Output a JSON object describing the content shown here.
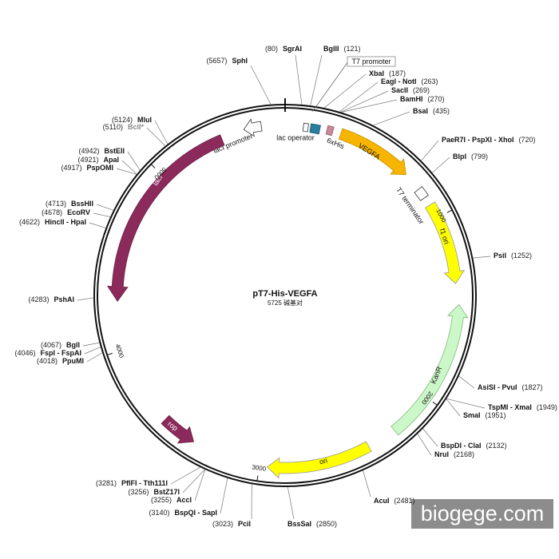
{
  "title": "pT7-His-VEGFA",
  "length": "5725 碱基对",
  "sites": [
    {
      "name": "SgrAI",
      "position": "(80)"
    },
    {
      "name": "BglII",
      "position": "(121)"
    },
    {
      "name": "XbaI",
      "position": "(187)"
    },
    {
      "name": "EagI - NotI",
      "position": "(263)"
    },
    {
      "name": "SacII",
      "position": "(269)"
    },
    {
      "name": "BamHI",
      "position": "(270)"
    },
    {
      "name": "BsaI",
      "position": "(435)"
    },
    {
      "name": "PaeR7I - PspXI - XhoI",
      "position": "(720)"
    },
    {
      "name": "BlpI",
      "position": "(799)"
    },
    {
      "name": "PsiI",
      "position": "(1252)"
    },
    {
      "name": "AsiSI - PvuI",
      "position": "(1827)"
    },
    {
      "name": "TspMI - XmaI",
      "position": "(1949)"
    },
    {
      "name": "SmaI",
      "position": "(1951)"
    },
    {
      "name": "BspDI - ClaI",
      "position": "(2132)"
    },
    {
      "name": "NruI",
      "position": "(2168)"
    },
    {
      "name": "AcuI",
      "position": "(2481)"
    },
    {
      "name": "BssSaI",
      "position": "(2850)"
    },
    {
      "name": "PciI",
      "position": "(3023)"
    },
    {
      "name": "BspQI - SapI",
      "position": "(3140)"
    },
    {
      "name": "AccI",
      "position": "(3255)"
    },
    {
      "name": "BstZ17I",
      "position": "(3256)"
    },
    {
      "name": "PflFI - Tth111I",
      "position": "(3281)"
    },
    {
      "name": "PpuMI",
      "position": "(4018)"
    },
    {
      "name": "FspI - FspAI",
      "position": "(4046)"
    },
    {
      "name": "BglI",
      "position": "(4067)"
    },
    {
      "name": "PshAI",
      "position": "(4283)"
    },
    {
      "name": "HincII - HpaI",
      "position": "(4622)"
    },
    {
      "name": "EcoRV",
      "position": "(4678)"
    },
    {
      "name": "BssHII",
      "position": "(4713)"
    },
    {
      "name": "PspOMI",
      "position": "(4917)"
    },
    {
      "name": "ApaI",
      "position": "(4921)"
    },
    {
      "name": "BstEII",
      "position": "(4942)"
    },
    {
      "name": "BclI*",
      "position": "(5110)"
    },
    {
      "name": "MluI",
      "position": "(5124)"
    },
    {
      "name": "SphI",
      "position": "(5657)"
    }
  ],
  "features": [
    "lacI promoter",
    "lacI",
    "lac operator",
    "6xHis",
    "VEGFA",
    "T7 terminator",
    "f1 ori",
    "KanR",
    "ori",
    "rop",
    "T7 promoter"
  ],
  "scale_ticks": [
    "1000",
    "2000",
    "3000",
    "4000",
    "5000"
  ],
  "watermark": "biogege.com"
}
